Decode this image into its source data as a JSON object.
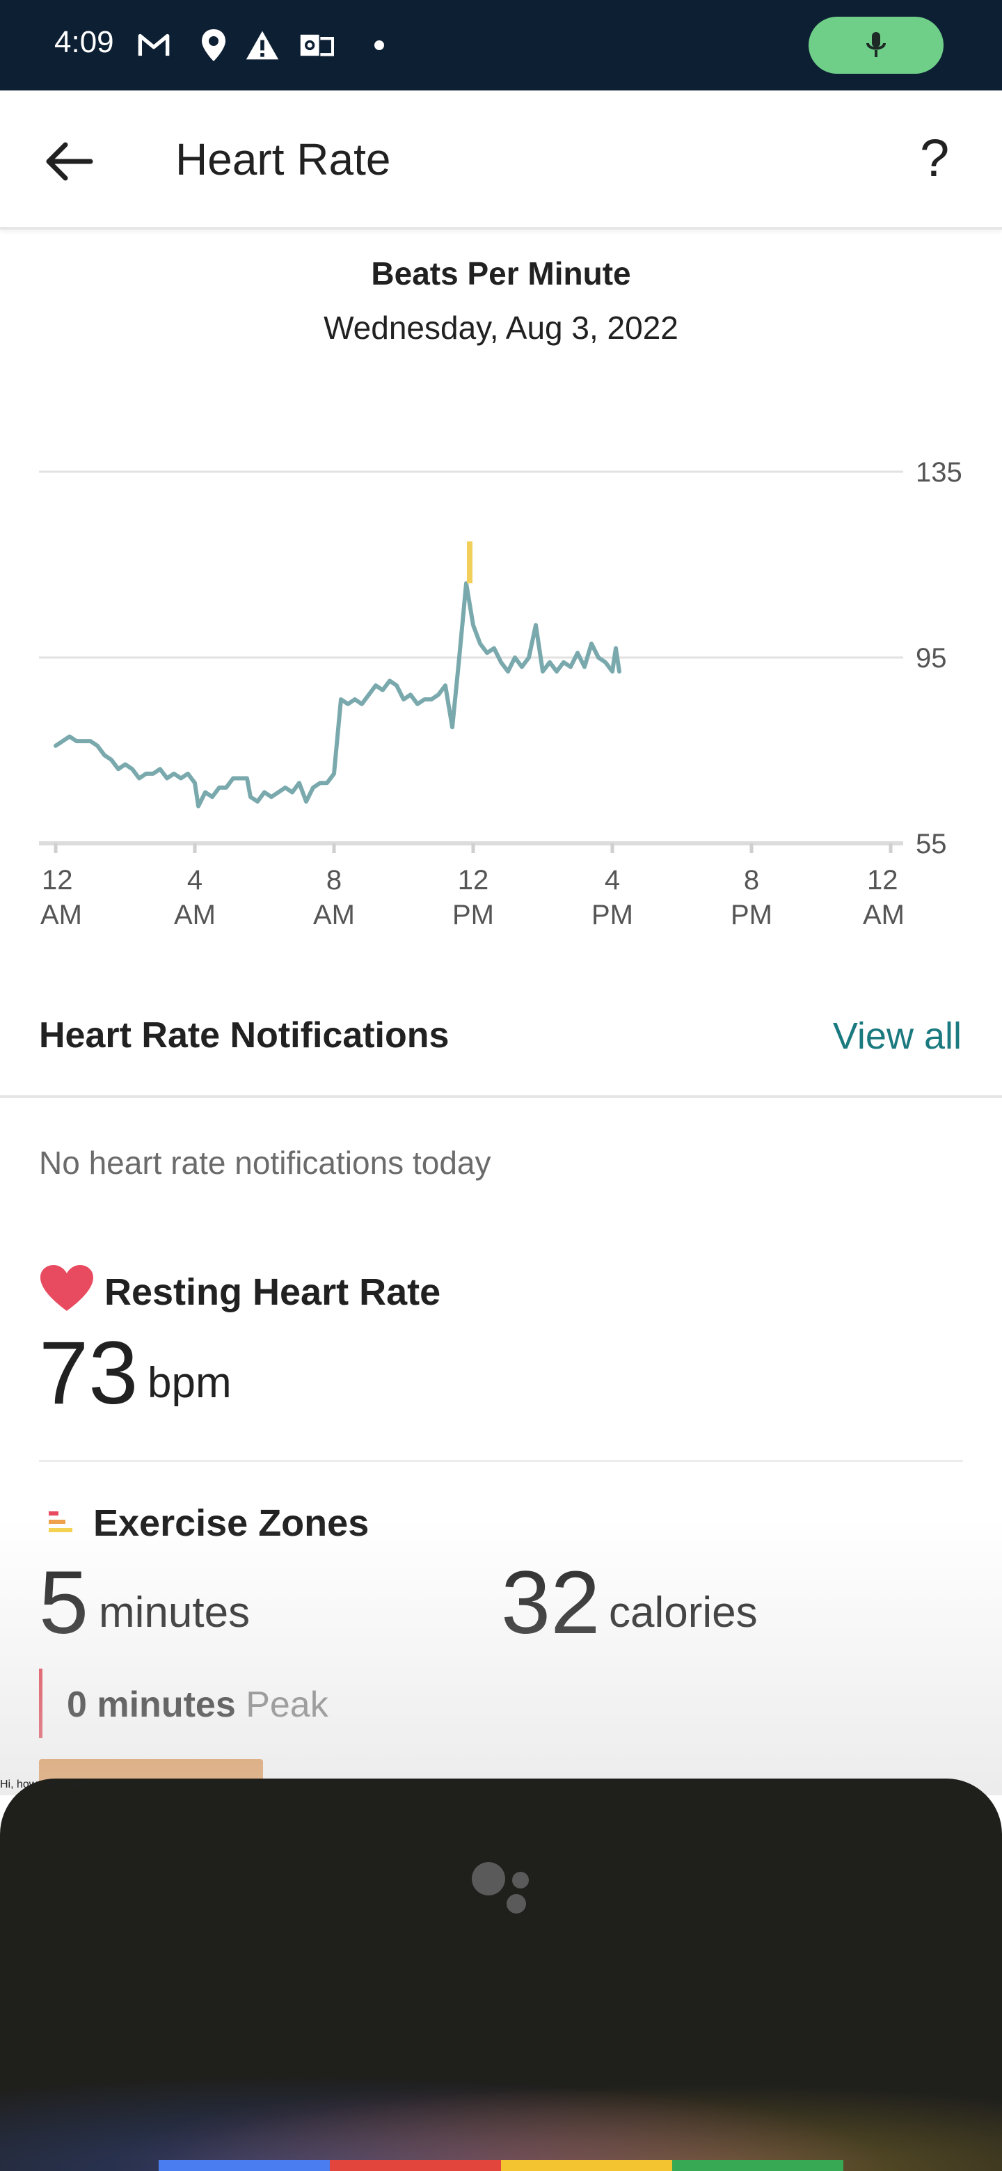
{
  "status_bar": {
    "time": "4:09",
    "icons": [
      "gmail-icon",
      "location-pin-icon",
      "warning-icon",
      "outlook-icon",
      "dot-icon"
    ],
    "mic_pill_color": "#6fcf89"
  },
  "appbar": {
    "title": "Heart Rate",
    "help_label": "?"
  },
  "chart_header": {
    "title": "Beats Per Minute",
    "date": "Wednesday, Aug 3, 2022"
  },
  "chart_data": {
    "type": "line",
    "x_unit": "hour of day",
    "xlim": [
      0,
      24
    ],
    "ylim": [
      55,
      135
    ],
    "y_ticks": [
      "135",
      "95",
      "55"
    ],
    "x_ticks": [
      {
        "line1": "12",
        "line2": "AM"
      },
      {
        "line1": "4",
        "line2": "AM"
      },
      {
        "line1": "8",
        "line2": "AM"
      },
      {
        "line1": "12",
        "line2": "PM"
      },
      {
        "line1": "4",
        "line2": "PM"
      },
      {
        "line1": "8",
        "line2": "PM"
      },
      {
        "line1": "12",
        "line2": "AM"
      }
    ],
    "line_color": "#7aa9ad",
    "peak_color": "#f2cf5b",
    "points": [
      [
        0,
        76
      ],
      [
        0.2,
        77
      ],
      [
        0.4,
        78
      ],
      [
        0.6,
        77
      ],
      [
        0.8,
        77
      ],
      [
        1.0,
        77
      ],
      [
        1.2,
        76
      ],
      [
        1.4,
        74
      ],
      [
        1.6,
        73
      ],
      [
        1.8,
        71
      ],
      [
        2.0,
        72
      ],
      [
        2.2,
        71
      ],
      [
        2.4,
        69
      ],
      [
        2.6,
        70
      ],
      [
        2.8,
        70
      ],
      [
        3.0,
        71
      ],
      [
        3.2,
        69
      ],
      [
        3.4,
        70
      ],
      [
        3.6,
        69
      ],
      [
        3.8,
        70
      ],
      [
        4.0,
        68
      ],
      [
        4.1,
        63
      ],
      [
        4.3,
        66
      ],
      [
        4.5,
        65
      ],
      [
        4.7,
        67
      ],
      [
        4.9,
        67
      ],
      [
        5.1,
        69
      ],
      [
        5.3,
        69
      ],
      [
        5.5,
        69
      ],
      [
        5.6,
        65
      ],
      [
        5.8,
        64
      ],
      [
        6.0,
        66
      ],
      [
        6.2,
        65
      ],
      [
        6.4,
        66
      ],
      [
        6.6,
        67
      ],
      [
        6.8,
        66
      ],
      [
        7.0,
        68
      ],
      [
        7.2,
        64
      ],
      [
        7.4,
        67
      ],
      [
        7.6,
        68
      ],
      [
        7.8,
        68
      ],
      [
        8.0,
        70
      ],
      [
        8.2,
        86
      ],
      [
        8.4,
        85
      ],
      [
        8.6,
        86
      ],
      [
        8.8,
        85
      ],
      [
        9.0,
        87
      ],
      [
        9.2,
        89
      ],
      [
        9.4,
        88
      ],
      [
        9.6,
        90
      ],
      [
        9.8,
        89
      ],
      [
        10.0,
        86
      ],
      [
        10.2,
        87
      ],
      [
        10.4,
        85
      ],
      [
        10.6,
        86
      ],
      [
        10.8,
        86
      ],
      [
        11.0,
        87
      ],
      [
        11.2,
        89
      ],
      [
        11.4,
        80
      ],
      [
        11.6,
        95
      ],
      [
        11.8,
        111
      ],
      [
        12.0,
        102
      ],
      [
        12.2,
        98
      ],
      [
        12.4,
        96
      ],
      [
        12.6,
        97
      ],
      [
        12.8,
        94
      ],
      [
        13.0,
        92
      ],
      [
        13.2,
        95
      ],
      [
        13.4,
        93
      ],
      [
        13.6,
        95
      ],
      [
        13.8,
        102
      ],
      [
        14.0,
        92
      ],
      [
        14.2,
        94
      ],
      [
        14.4,
        92
      ],
      [
        14.6,
        94
      ],
      [
        14.8,
        93
      ],
      [
        15.0,
        96
      ],
      [
        15.2,
        93
      ],
      [
        15.4,
        98
      ],
      [
        15.6,
        95
      ],
      [
        15.8,
        94
      ],
      [
        16.0,
        92
      ],
      [
        16.1,
        97
      ],
      [
        16.2,
        92
      ]
    ],
    "peak_segment": {
      "x": 11.9,
      "y_from": 111,
      "y_to": 120
    }
  },
  "notifications": {
    "header": "Heart Rate Notifications",
    "view_all": "View all",
    "empty_text": "No heart rate notifications today"
  },
  "resting_hr": {
    "title": "Resting Heart Rate",
    "value": "73",
    "unit": "bpm",
    "heart_color": "#e84a5f"
  },
  "exercise_zones": {
    "title": "Exercise Zones",
    "minutes_value": "5",
    "minutes_unit": "minutes",
    "calories_value": "32",
    "calories_unit": "calories",
    "peak_minutes": "0 minutes",
    "peak_label": "Peak",
    "bar_color": "#e08a3a"
  },
  "assistant": {
    "prompt": "Hi, how can I help?",
    "bar_colors": [
      "#4a7df0",
      "#e2453c",
      "#f4c430",
      "#37a853"
    ]
  }
}
